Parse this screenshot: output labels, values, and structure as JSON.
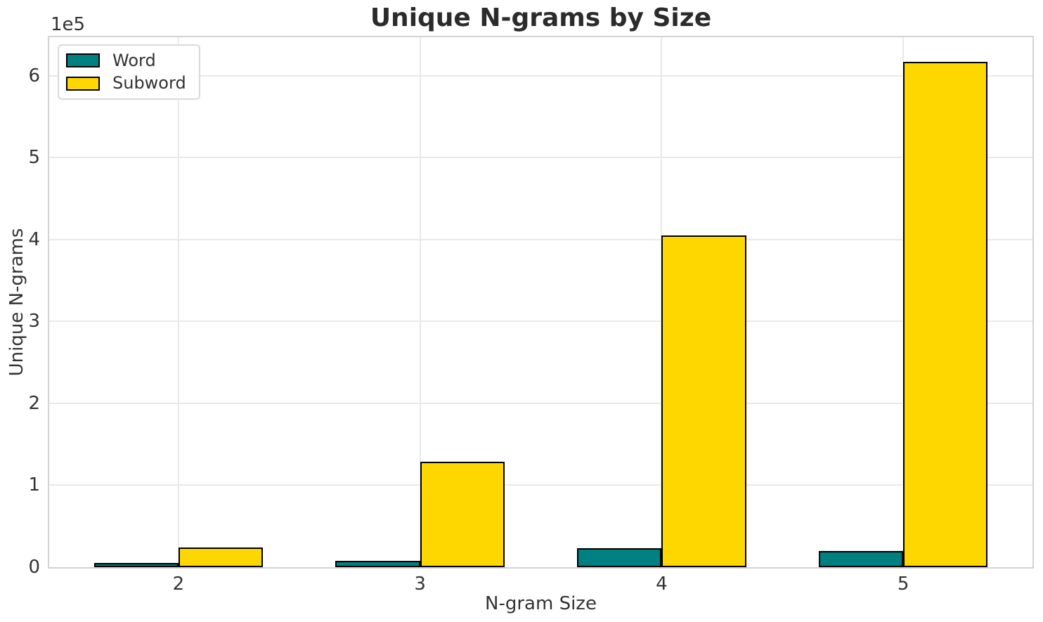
{
  "chart_data": {
    "type": "bar",
    "title": "Unique N-grams by Size",
    "xlabel": "N-gram Size",
    "ylabel": "Unique N-grams",
    "y_offset_text": "1e5",
    "categories": [
      "2",
      "3",
      "4",
      "5"
    ],
    "x_positions": [
      2,
      3,
      4,
      5
    ],
    "series": [
      {
        "name": "Word",
        "color": "#008080",
        "values": [
          5000,
          7500,
          23000,
          20000
        ]
      },
      {
        "name": "Subword",
        "color": "#FFD700",
        "values": [
          24000,
          129000,
          405000,
          617000
        ]
      }
    ],
    "bar_width_units": 0.35,
    "bar_edge_color": "#000000",
    "xlim": [
      1.465,
      5.535
    ],
    "ylim": [
      0,
      647000
    ],
    "yticks": {
      "values": [
        0,
        100000,
        200000,
        300000,
        400000,
        500000,
        600000
      ],
      "labels": [
        "0",
        "1",
        "2",
        "3",
        "4",
        "5",
        "6"
      ]
    },
    "grid": true,
    "legend": {
      "position": "upper left",
      "entries": [
        "Word",
        "Subword"
      ]
    }
  },
  "colors": {
    "grid": "#e9e9e9",
    "spine": "#d3d3d3",
    "title_text": "#2b2b2b",
    "tick_text": "#333333",
    "background": "#ffffff"
  }
}
